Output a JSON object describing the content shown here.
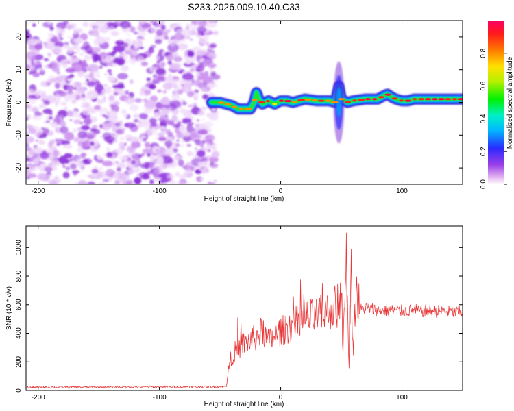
{
  "title": "S233.2026.009.10.40.C33",
  "chart_data": [
    {
      "type": "heatmap",
      "xlabel": "Height of straight line (km)",
      "ylabel": "Frequency (Hz)",
      "xlim": [
        -210,
        150
      ],
      "ylim": [
        -25,
        25
      ],
      "xticks": [
        -200,
        -100,
        0,
        100
      ],
      "yticks": [
        -20,
        -10,
        0,
        10,
        20
      ],
      "ridge": {
        "x": [
          -57,
          -50,
          -45,
          -40,
          -35,
          -30,
          -25,
          -22,
          -20,
          -18,
          -15,
          -10,
          -5,
          0,
          5,
          10,
          15,
          20,
          30,
          40,
          45,
          48,
          50,
          55,
          60,
          70,
          80,
          85,
          88,
          92,
          95,
          100,
          105,
          110,
          120,
          130,
          140,
          150
        ],
        "y": [
          0,
          0,
          -0.5,
          -1,
          -2,
          -2,
          -2,
          0,
          3,
          1,
          -0.5,
          0.5,
          -0.5,
          0.5,
          0.5,
          0,
          0.5,
          1,
          0.5,
          0.5,
          0,
          5,
          1,
          0,
          0.5,
          1,
          1,
          2,
          2.5,
          1.5,
          1,
          0.5,
          0.5,
          1,
          1,
          1,
          1,
          1
        ]
      },
      "colorbar": {
        "label": "Normalized spectral amplitude",
        "ticks": [
          "0.0",
          "0.2",
          "0.4",
          "0.6",
          "0.8"
        ]
      }
    },
    {
      "type": "line",
      "xlabel": "Height of straight line (km)",
      "ylabel": "SNR (10 * v/v)",
      "xlim": [
        -210,
        150
      ],
      "ylim": [
        0,
        1150
      ],
      "xticks": [
        -200,
        -100,
        0,
        100
      ],
      "yticks": [
        0,
        200,
        400,
        600,
        800,
        1000
      ],
      "series": [
        {
          "name": "SNR",
          "color": "#e8393a",
          "x": [
            -210,
            -150,
            -100,
            -60,
            -45,
            -42,
            -38,
            -30,
            -20,
            -15,
            -10,
            -5,
            0,
            10,
            20,
            30,
            40,
            46,
            50,
            52,
            54,
            56,
            58,
            60,
            62,
            65,
            70,
            80,
            90,
            100,
            110,
            120,
            130,
            140,
            150
          ],
          "y": [
            22,
            24,
            26,
            25,
            28,
            200,
            270,
            330,
            370,
            420,
            340,
            380,
            420,
            460,
            500,
            520,
            560,
            600,
            680,
            300,
            1050,
            150,
            900,
            250,
            750,
            560,
            580,
            560,
            560,
            555,
            560,
            555,
            555,
            550,
            545
          ]
        }
      ]
    }
  ]
}
